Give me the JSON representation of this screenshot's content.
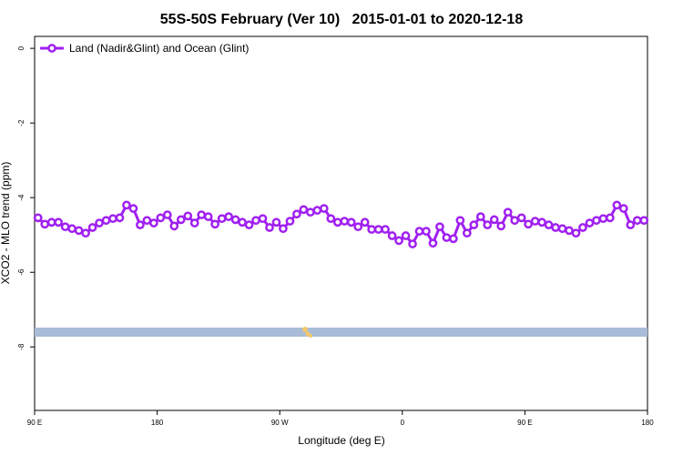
{
  "chart_data": {
    "type": "line",
    "title": "55S-50S February (Ver 10)   2015-01-01 to 2020-12-18",
    "xlabel": "Longitude (deg E)",
    "ylabel": "XCO2 - MLO trend (ppm)",
    "xlim": [
      90,
      540
    ],
    "ylim": [
      -9.7,
      0.32
    ],
    "xticks": [
      {
        "value": 90,
        "label": "90 E"
      },
      180,
      {
        "value": 270,
        "label": "90 W"
      },
      {
        "value": 360,
        "label": "0"
      },
      {
        "value": 450,
        "label": "90 E"
      },
      {
        "value": 540,
        "label": "180"
      }
    ],
    "yticks": [
      0,
      -2,
      -4,
      -6,
      -8
    ],
    "grid": false,
    "legend": "top-left",
    "x": [
      92.5,
      97.5,
      102.5,
      107.5,
      112.5,
      117.5,
      122.5,
      127.5,
      132.5,
      137.5,
      142.5,
      147.5,
      152.5,
      157.5,
      162.5,
      167.5,
      172.5,
      177.5,
      182.5,
      187.5,
      192.5,
      197.5,
      202.5,
      207.5,
      212.5,
      217.5,
      222.5,
      227.5,
      232.5,
      237.5,
      242.5,
      247.5,
      252.5,
      257.5,
      262.5,
      267.5,
      272.5,
      277.5,
      282.5,
      287.5,
      292.5,
      297.5,
      302.5,
      307.5,
      312.5,
      317.5,
      322.5,
      327.5,
      332.5,
      337.5,
      342.5,
      347.5,
      352.5,
      357.5,
      362.5,
      367.5,
      372.5,
      377.5,
      382.5,
      387.5,
      392.5,
      397.5,
      402.5,
      407.5,
      412.5,
      417.5,
      422.5,
      427.5,
      432.5,
      437.5,
      442.5,
      447.5,
      452.5,
      457.5,
      462.5,
      467.5,
      472.5,
      477.5,
      482.5,
      487.5,
      492.5,
      497.5,
      502.5,
      507.5,
      512.5,
      517.5,
      522.5,
      527.5,
      532.5,
      537.5
    ],
    "series": [
      {
        "name": "Land (Nadir&Glint) and Ocean (Glint)",
        "color": "#a020f0",
        "values": [
          -4.54,
          -4.71,
          -4.66,
          -4.66,
          -4.78,
          -4.83,
          -4.88,
          -4.95,
          -4.8,
          -4.68,
          -4.61,
          -4.56,
          -4.54,
          -4.2,
          -4.29,
          -4.73,
          -4.61,
          -4.68,
          -4.54,
          -4.46,
          -4.76,
          -4.59,
          -4.49,
          -4.68,
          -4.46,
          -4.51,
          -4.71,
          -4.56,
          -4.51,
          -4.59,
          -4.66,
          -4.73,
          -4.61,
          -4.56,
          -4.8,
          -4.66,
          -4.83,
          -4.63,
          -4.44,
          -4.32,
          -4.39,
          -4.34,
          -4.29,
          -4.56,
          -4.66,
          -4.63,
          -4.66,
          -4.78,
          -4.66,
          -4.85,
          -4.85,
          -4.85,
          -5.02,
          -5.15,
          -5.02,
          -5.24,
          -4.9,
          -4.9,
          -5.22,
          -4.78,
          -5.07,
          -5.1,
          -4.61,
          -4.95,
          -4.73,
          -4.51,
          -4.73,
          -4.59,
          -4.76,
          -4.39,
          -4.61,
          -4.54,
          -4.71,
          -4.63,
          -4.66,
          -4.73,
          -4.8,
          -4.83,
          -4.88,
          -4.95,
          -4.8,
          -4.68,
          -4.61,
          -4.56,
          -4.54,
          -4.2,
          -4.29,
          -4.73,
          -4.61,
          -4.61
        ]
      }
    ]
  }
}
